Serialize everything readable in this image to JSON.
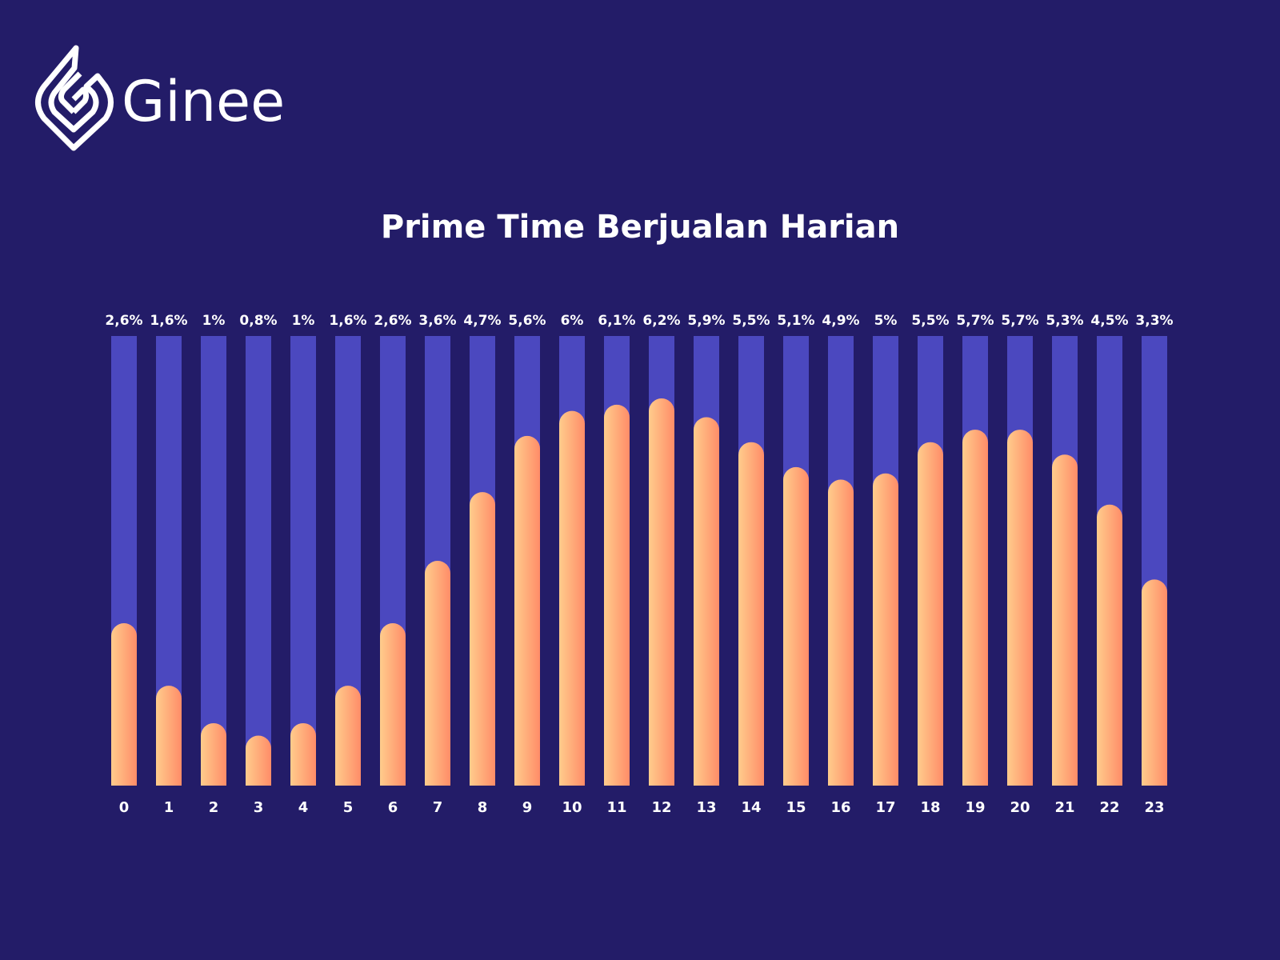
{
  "logo_text": "Ginee",
  "chart_data": {
    "type": "bar",
    "title": "Prime Time Berjualan Harian",
    "categories": [
      "0",
      "1",
      "2",
      "3",
      "4",
      "5",
      "6",
      "7",
      "8",
      "9",
      "10",
      "11",
      "12",
      "13",
      "14",
      "15",
      "16",
      "17",
      "18",
      "19",
      "20",
      "21",
      "22",
      "23"
    ],
    "values": [
      2.6,
      1.6,
      1,
      0.8,
      1,
      1.6,
      2.6,
      3.6,
      4.7,
      5.6,
      6,
      6.1,
      6.2,
      5.9,
      5.5,
      5.1,
      4.9,
      5,
      5.5,
      5.7,
      5.7,
      5.3,
      4.5,
      3.3
    ],
    "value_labels": [
      "2,6%",
      "1,6%",
      "1%",
      "0,8%",
      "1%",
      "1,6%",
      "2,6%",
      "3,6%",
      "4,7%",
      "5,6%",
      "6%",
      "6,1%",
      "6,2%",
      "5,9%",
      "5,5%",
      "5,1%",
      "4,9%",
      "5%",
      "5,5%",
      "5,7%",
      "5,7%",
      "5,3%",
      "4,5%",
      "3,3%"
    ],
    "color": "#ff9a6e",
    "track_color": "#4b48bf",
    "ylim": [
      0,
      7.2
    ]
  }
}
